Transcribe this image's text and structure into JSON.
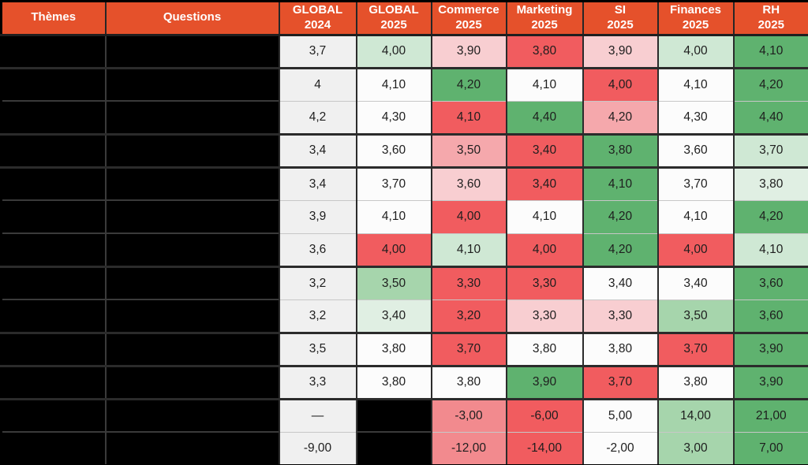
{
  "palette": {
    "header_bg": "#e5512b",
    "header_text": "#ffffff",
    "grid_dark": "#2b2b2b",
    "grid_light": "#c7c7c7",
    "redacted_black": "#000000",
    "cell_colors": {
      "gray": "#f0f0f0",
      "white": "#fcfcfc",
      "g0": "#e0efe3",
      "g1": "#cfe8d4",
      "g2": "#a6d5ac",
      "g3": "#5fb26f",
      "r1": "#f8ced1",
      "r2": "#f5a8ac",
      "rs": "#f28a8e",
      "r3": "#f15c5f"
    }
  },
  "chart_data": {
    "type": "table",
    "title": "",
    "columns": [
      {
        "id": "themes",
        "label": "Thèmes"
      },
      {
        "id": "questions",
        "label": "Questions"
      },
      {
        "id": "global-2024",
        "label": "GLOBAL\n2024"
      },
      {
        "id": "global-2025",
        "label": "GLOBAL\n2025"
      },
      {
        "id": "commerce-2025",
        "label": "Commerce\n2025"
      },
      {
        "id": "marketing-2025",
        "label": "Marketing\n2025"
      },
      {
        "id": "si-2025",
        "label": "SI\n2025"
      },
      {
        "id": "finances-2025",
        "label": "Finances\n2025"
      },
      {
        "id": "rh-2025",
        "label": "RH\n2025"
      }
    ],
    "rows": [
      {
        "group_start": true,
        "theme_redacted": true,
        "question_redacted": true,
        "cells": [
          {
            "v": "3,7",
            "c": "gray"
          },
          {
            "v": "4,00",
            "c": "g1"
          },
          {
            "v": "3,90",
            "c": "r1"
          },
          {
            "v": "3,80",
            "c": "r3"
          },
          {
            "v": "3,90",
            "c": "r1"
          },
          {
            "v": "4,00",
            "c": "g1"
          },
          {
            "v": "4,10",
            "c": "g3"
          }
        ]
      },
      {
        "group_start": true,
        "theme_redacted": true,
        "question_redacted": true,
        "cells": [
          {
            "v": "4",
            "c": "gray"
          },
          {
            "v": "4,10",
            "c": "white"
          },
          {
            "v": "4,20",
            "c": "g3"
          },
          {
            "v": "4,10",
            "c": "white"
          },
          {
            "v": "4,00",
            "c": "r3"
          },
          {
            "v": "4,10",
            "c": "white"
          },
          {
            "v": "4,20",
            "c": "g3"
          }
        ]
      },
      {
        "group_start": false,
        "theme_redacted": true,
        "question_redacted": true,
        "cells": [
          {
            "v": "4,2",
            "c": "gray"
          },
          {
            "v": "4,30",
            "c": "white"
          },
          {
            "v": "4,10",
            "c": "r3"
          },
          {
            "v": "4,40",
            "c": "g3"
          },
          {
            "v": "4,20",
            "c": "r2"
          },
          {
            "v": "4,30",
            "c": "white"
          },
          {
            "v": "4,40",
            "c": "g3"
          }
        ]
      },
      {
        "group_start": true,
        "theme_redacted": true,
        "question_redacted": true,
        "cells": [
          {
            "v": "3,4",
            "c": "gray"
          },
          {
            "v": "3,60",
            "c": "white"
          },
          {
            "v": "3,50",
            "c": "r2"
          },
          {
            "v": "3,40",
            "c": "r3"
          },
          {
            "v": "3,80",
            "c": "g3"
          },
          {
            "v": "3,60",
            "c": "white"
          },
          {
            "v": "3,70",
            "c": "g1"
          }
        ]
      },
      {
        "group_start": true,
        "theme_redacted": true,
        "question_redacted": true,
        "cells": [
          {
            "v": "3,4",
            "c": "gray"
          },
          {
            "v": "3,70",
            "c": "white"
          },
          {
            "v": "3,60",
            "c": "r1"
          },
          {
            "v": "3,40",
            "c": "r3"
          },
          {
            "v": "4,10",
            "c": "g3"
          },
          {
            "v": "3,70",
            "c": "white"
          },
          {
            "v": "3,80",
            "c": "g0"
          }
        ]
      },
      {
        "group_start": false,
        "theme_redacted": true,
        "question_redacted": true,
        "cells": [
          {
            "v": "3,9",
            "c": "gray"
          },
          {
            "v": "4,10",
            "c": "white"
          },
          {
            "v": "4,00",
            "c": "r3"
          },
          {
            "v": "4,10",
            "c": "white"
          },
          {
            "v": "4,20",
            "c": "g3"
          },
          {
            "v": "4,10",
            "c": "white"
          },
          {
            "v": "4,20",
            "c": "g3"
          }
        ]
      },
      {
        "group_start": false,
        "theme_redacted": true,
        "question_redacted": true,
        "cells": [
          {
            "v": "3,6",
            "c": "gray"
          },
          {
            "v": "4,00",
            "c": "r3"
          },
          {
            "v": "4,10",
            "c": "g1"
          },
          {
            "v": "4,00",
            "c": "r3"
          },
          {
            "v": "4,20",
            "c": "g3"
          },
          {
            "v": "4,00",
            "c": "r3"
          },
          {
            "v": "4,10",
            "c": "g1"
          }
        ]
      },
      {
        "group_start": true,
        "theme_redacted": true,
        "question_redacted": true,
        "cells": [
          {
            "v": "3,2",
            "c": "gray"
          },
          {
            "v": "3,50",
            "c": "g2"
          },
          {
            "v": "3,30",
            "c": "r3"
          },
          {
            "v": "3,30",
            "c": "r3"
          },
          {
            "v": "3,40",
            "c": "white"
          },
          {
            "v": "3,40",
            "c": "white"
          },
          {
            "v": "3,60",
            "c": "g3"
          }
        ]
      },
      {
        "group_start": false,
        "theme_redacted": true,
        "question_redacted": true,
        "cells": [
          {
            "v": "3,2",
            "c": "gray"
          },
          {
            "v": "3,40",
            "c": "g0"
          },
          {
            "v": "3,20",
            "c": "r3"
          },
          {
            "v": "3,30",
            "c": "r1"
          },
          {
            "v": "3,30",
            "c": "r1"
          },
          {
            "v": "3,50",
            "c": "g2"
          },
          {
            "v": "3,60",
            "c": "g3"
          }
        ]
      },
      {
        "group_start": true,
        "theme_redacted": true,
        "question_redacted": true,
        "cells": [
          {
            "v": "3,5",
            "c": "gray"
          },
          {
            "v": "3,80",
            "c": "white"
          },
          {
            "v": "3,70",
            "c": "r3"
          },
          {
            "v": "3,80",
            "c": "white"
          },
          {
            "v": "3,80",
            "c": "white"
          },
          {
            "v": "3,70",
            "c": "r3"
          },
          {
            "v": "3,90",
            "c": "g3"
          }
        ]
      },
      {
        "group_start": true,
        "theme_redacted": true,
        "question_redacted": true,
        "cells": [
          {
            "v": "3,3",
            "c": "gray"
          },
          {
            "v": "3,80",
            "c": "white"
          },
          {
            "v": "3,80",
            "c": "white"
          },
          {
            "v": "3,90",
            "c": "g3"
          },
          {
            "v": "3,70",
            "c": "r3"
          },
          {
            "v": "3,80",
            "c": "white"
          },
          {
            "v": "3,90",
            "c": "g3"
          }
        ]
      },
      {
        "group_start": true,
        "theme_redacted": true,
        "question_redacted": true,
        "cells": [
          {
            "v": "—",
            "c": "gray"
          },
          {
            "v": "",
            "c": "black"
          },
          {
            "v": "-3,00",
            "c": "rs"
          },
          {
            "v": "-6,00",
            "c": "r3"
          },
          {
            "v": "5,00",
            "c": "white"
          },
          {
            "v": "14,00",
            "c": "g2"
          },
          {
            "v": "21,00",
            "c": "g3"
          }
        ]
      },
      {
        "group_start": false,
        "theme_redacted": true,
        "question_redacted": true,
        "cells": [
          {
            "v": "-9,00",
            "c": "gray"
          },
          {
            "v": "",
            "c": "black"
          },
          {
            "v": "-12,00",
            "c": "rs"
          },
          {
            "v": "-14,00",
            "c": "r3"
          },
          {
            "v": "-2,00",
            "c": "white"
          },
          {
            "v": "3,00",
            "c": "g2"
          },
          {
            "v": "7,00",
            "c": "g3"
          }
        ]
      }
    ]
  }
}
